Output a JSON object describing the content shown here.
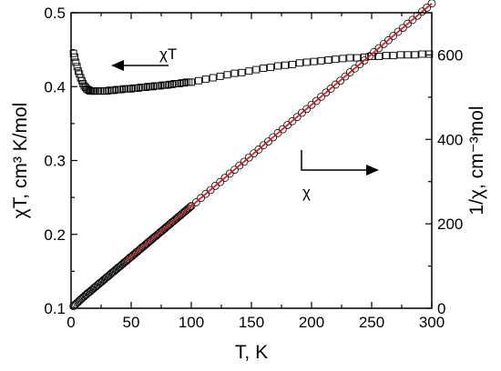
{
  "chart_data": {
    "type": "scatter",
    "xlabel": "T, K",
    "ylabel_left": "χT, cm³ K/mol",
    "ylabel_right": "1/χ, cm⁻³mol",
    "xlim": [
      0,
      300
    ],
    "ylim_left": [
      0.1,
      0.5
    ],
    "ylim_right": [
      0,
      700
    ],
    "x_ticks": [
      "0",
      "50",
      "100",
      "150",
      "200",
      "250",
      "300"
    ],
    "y_left_ticks": [
      "0.1",
      "0.2",
      "0.3",
      "0.4",
      "0.5"
    ],
    "y_right_ticks": [
      "0",
      "200",
      "400",
      "600"
    ],
    "grid": false,
    "annotations": {
      "chiT": "χT",
      "chi": "χ"
    },
    "series": [
      {
        "axis": "left",
        "marker": "square",
        "x": [
          2,
          3,
          4,
          5,
          6,
          7,
          8,
          9,
          10,
          11,
          12,
          13,
          14,
          15,
          16,
          17,
          18,
          19,
          20,
          22,
          24,
          26,
          28,
          30,
          32,
          34,
          36,
          38,
          40,
          42,
          44,
          46,
          48,
          50,
          52,
          54,
          56,
          58,
          60,
          62,
          64,
          66,
          68,
          70,
          72,
          74,
          76,
          78,
          80,
          82,
          84,
          86,
          88,
          90,
          92,
          94,
          96,
          98,
          100,
          106,
          112,
          118,
          124,
          130,
          136,
          142,
          148,
          154,
          160,
          166,
          172,
          178,
          184,
          190,
          196,
          202,
          208,
          214,
          220,
          226,
          232,
          238,
          244,
          250,
          256,
          262,
          268,
          274,
          280,
          286,
          292,
          298
        ],
        "values": [
          0.445,
          0.44,
          0.433,
          0.427,
          0.421,
          0.417,
          0.412,
          0.408,
          0.404,
          0.401,
          0.399,
          0.397,
          0.396,
          0.395,
          0.394,
          0.394,
          0.394,
          0.394,
          0.394,
          0.394,
          0.394,
          0.394,
          0.394,
          0.394,
          0.395,
          0.395,
          0.395,
          0.396,
          0.396,
          0.396,
          0.397,
          0.397,
          0.397,
          0.397,
          0.398,
          0.398,
          0.398,
          0.399,
          0.399,
          0.399,
          0.4,
          0.4,
          0.4,
          0.401,
          0.401,
          0.401,
          0.402,
          0.402,
          0.402,
          0.403,
          0.403,
          0.404,
          0.404,
          0.404,
          0.405,
          0.405,
          0.406,
          0.406,
          0.406,
          0.408,
          0.41,
          0.412,
          0.414,
          0.416,
          0.418,
          0.419,
          0.421,
          0.423,
          0.425,
          0.426,
          0.428,
          0.429,
          0.43,
          0.432,
          0.433,
          0.434,
          0.435,
          0.436,
          0.437,
          0.438,
          0.439,
          0.439,
          0.44,
          0.441,
          0.441,
          0.442,
          0.442,
          0.443,
          0.443,
          0.443,
          0.444,
          0.444
        ]
      },
      {
        "axis": "right",
        "marker": "circle",
        "x": [
          2,
          3,
          4,
          5,
          6,
          7,
          8,
          9,
          10,
          11,
          12,
          13,
          14,
          15,
          16,
          17,
          18,
          19,
          20,
          21,
          22,
          23,
          24,
          25,
          26,
          27,
          28,
          29,
          30,
          31,
          32,
          33,
          34,
          35,
          36,
          37,
          38,
          39,
          40,
          41,
          42,
          43,
          44,
          45,
          46,
          47,
          48,
          49,
          50,
          51,
          52,
          53,
          54,
          55,
          56,
          57,
          58,
          59,
          60,
          61,
          62,
          63,
          64,
          65,
          66,
          67,
          68,
          69,
          70,
          71,
          72,
          73,
          74,
          75,
          76,
          77,
          78,
          79,
          80,
          81,
          82,
          83,
          84,
          85,
          86,
          87,
          88,
          89,
          90,
          91,
          92,
          93,
          94,
          95,
          96,
          97,
          98,
          99,
          100,
          104,
          108,
          112,
          116,
          120,
          124,
          128,
          132,
          136,
          140,
          144,
          148,
          152,
          156,
          160,
          164,
          168,
          172,
          176,
          180,
          184,
          188,
          192,
          196,
          200,
          204,
          208,
          212,
          216,
          220,
          224,
          228,
          232,
          236,
          240,
          244,
          248,
          252,
          256,
          260,
          264,
          268,
          272,
          276,
          280,
          284,
          288,
          292,
          296,
          300
        ],
        "values": [
          5,
          8,
          10,
          13,
          15,
          18,
          21,
          23,
          26,
          28,
          31,
          33,
          36,
          38,
          40,
          43,
          45,
          48,
          50,
          52,
          55,
          57,
          60,
          62,
          64,
          67,
          69,
          72,
          74,
          76,
          79,
          81,
          84,
          86,
          88,
          91,
          93,
          96,
          98,
          100,
          103,
          105,
          108,
          110,
          112,
          115,
          117,
          120,
          122,
          124,
          127,
          129,
          132,
          134,
          136,
          139,
          141,
          144,
          146,
          148,
          151,
          153,
          156,
          158,
          160,
          163,
          165,
          168,
          170,
          172,
          175,
          177,
          180,
          182,
          184,
          187,
          189,
          192,
          194,
          196,
          199,
          201,
          204,
          206,
          208,
          211,
          213,
          216,
          218,
          220,
          223,
          225,
          228,
          230,
          232,
          235,
          237,
          240,
          242,
          251,
          261,
          271,
          280,
          290,
          299,
          309,
          319,
          328,
          338,
          347,
          357,
          367,
          376,
          386,
          395,
          405,
          415,
          424,
          434,
          443,
          453,
          463,
          472,
          482,
          491,
          501,
          511,
          520,
          530,
          539,
          549,
          559,
          568,
          578,
          587,
          597,
          607,
          616,
          626,
          635,
          645,
          655,
          664,
          674,
          683,
          693,
          703,
          712,
          722
        ]
      }
    ],
    "fit_line": {
      "axis": "right",
      "color": "#e8201e",
      "x": [
        45,
        300
      ],
      "values": [
        110,
        722
      ]
    },
    "colors": {
      "markers": "#000000",
      "fit": "#e8201e"
    }
  }
}
